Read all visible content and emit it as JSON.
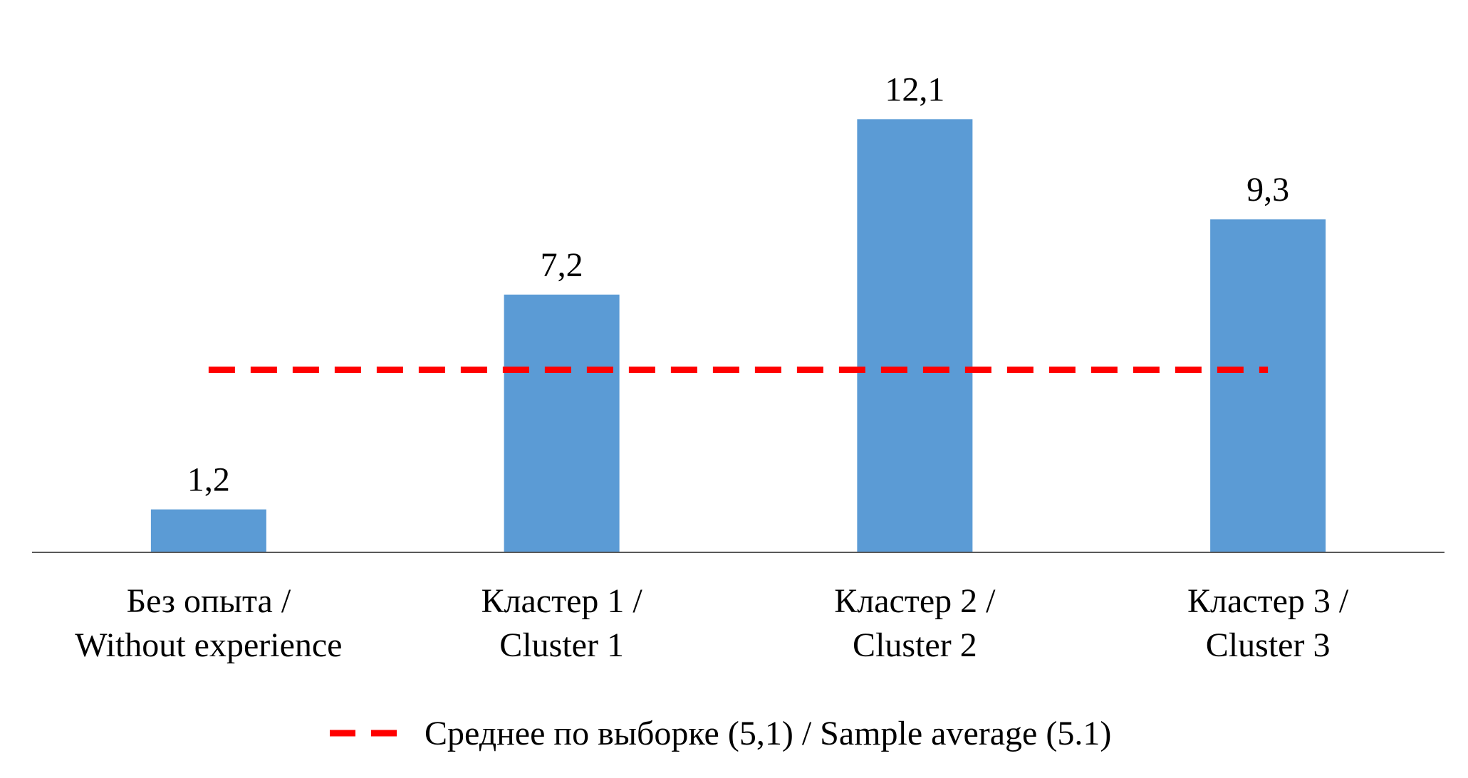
{
  "chart_data": {
    "type": "bar",
    "categories": [
      [
        "Без опыта /",
        "Without experience"
      ],
      [
        "Кластер 1 /",
        "Cluster 1"
      ],
      [
        "Кластер 2 /",
        "Cluster 2"
      ],
      [
        "Кластер 3 /",
        "Cluster 3"
      ]
    ],
    "values": [
      1.2,
      7.2,
      12.1,
      9.3
    ],
    "data_labels": [
      "1,2",
      "7,2",
      "12,1",
      "9,3"
    ],
    "reference_line": {
      "value": 5.1,
      "style": "dashed",
      "label": "Среднее по выборке (5,1) / Sample average (5.1)"
    },
    "ylim": [
      0,
      13.4
    ],
    "grid": false,
    "legend_position": "bottom",
    "colors": {
      "bar": "#5b9bd5",
      "reference_line": "#ff0000",
      "axis": "#595959"
    }
  }
}
